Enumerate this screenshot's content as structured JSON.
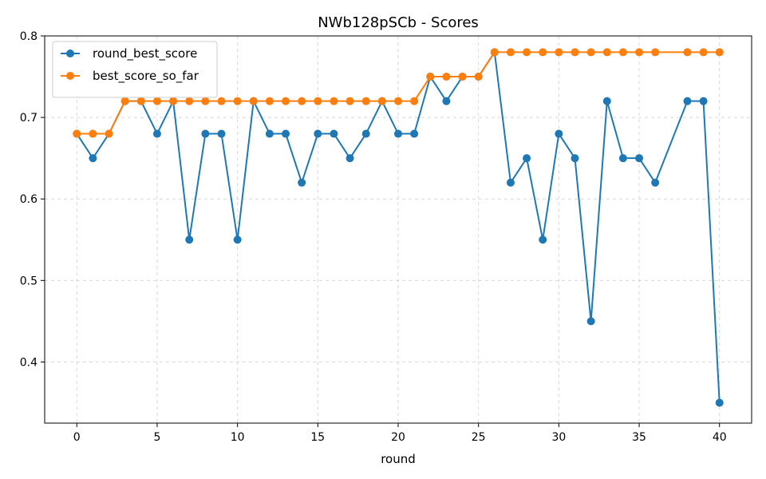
{
  "chart_data": {
    "type": "line",
    "title": "NWb128pSCb - Scores",
    "xlabel": "round",
    "ylabel": "",
    "xlim": [
      -2,
      42
    ],
    "ylim": [
      0.325,
      0.8
    ],
    "xticks": [
      0,
      5,
      10,
      15,
      20,
      25,
      30,
      35,
      40
    ],
    "yticks": [
      0.4,
      0.5,
      0.6,
      0.7,
      0.8
    ],
    "xtick_labels": [
      "0",
      "5",
      "10",
      "15",
      "20",
      "25",
      "30",
      "35",
      "40"
    ],
    "ytick_labels": [
      "0.4",
      "0.5",
      "0.6",
      "0.7",
      "0.8"
    ],
    "grid": true,
    "legend_position": "top-left",
    "x": [
      0,
      1,
      2,
      3,
      4,
      5,
      6,
      7,
      8,
      9,
      10,
      11,
      12,
      13,
      14,
      15,
      16,
      17,
      18,
      19,
      20,
      21,
      22,
      23,
      24,
      25,
      26,
      27,
      28,
      29,
      30,
      31,
      32,
      33,
      34,
      35,
      36,
      38,
      39,
      40
    ],
    "series": [
      {
        "name": "round_best_score",
        "color": "#1f77b4",
        "values": [
          0.68,
          0.65,
          0.68,
          0.72,
          0.72,
          0.68,
          0.72,
          0.55,
          0.68,
          0.68,
          0.55,
          0.72,
          0.68,
          0.68,
          0.62,
          0.68,
          0.68,
          0.65,
          0.68,
          0.72,
          0.68,
          0.68,
          0.75,
          0.72,
          0.75,
          0.75,
          0.78,
          0.62,
          0.65,
          0.55,
          0.68,
          0.65,
          0.45,
          0.72,
          0.65,
          0.65,
          0.62,
          0.72,
          0.72,
          0.35
        ]
      },
      {
        "name": "best_score_so_far",
        "color": "#ff7f0e",
        "values": [
          0.68,
          0.68,
          0.68,
          0.72,
          0.72,
          0.72,
          0.72,
          0.72,
          0.72,
          0.72,
          0.72,
          0.72,
          0.72,
          0.72,
          0.72,
          0.72,
          0.72,
          0.72,
          0.72,
          0.72,
          0.72,
          0.72,
          0.75,
          0.75,
          0.75,
          0.75,
          0.78,
          0.78,
          0.78,
          0.78,
          0.78,
          0.78,
          0.78,
          0.78,
          0.78,
          0.78,
          0.78,
          0.78,
          0.78,
          0.78
        ]
      }
    ]
  }
}
